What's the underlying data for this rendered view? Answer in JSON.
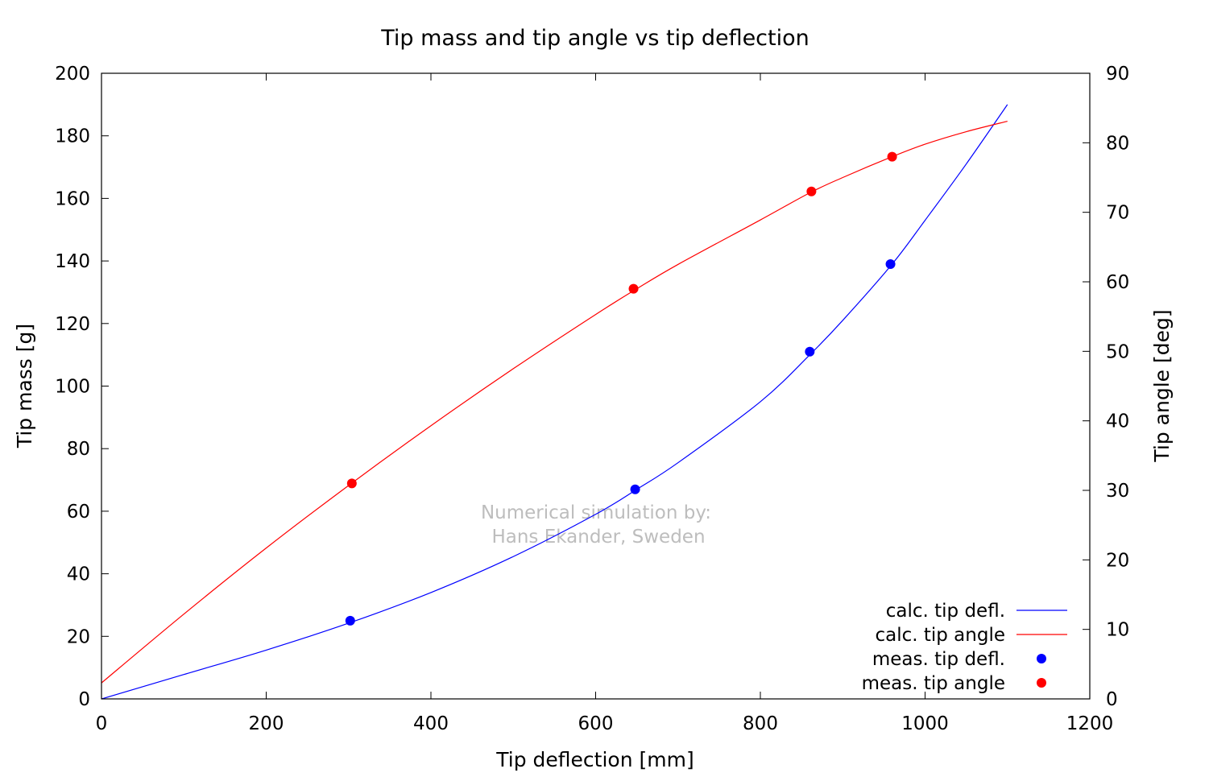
{
  "chart_data": {
    "type": "line",
    "title": "Tip mass and tip angle vs tip deflection",
    "xlabel": "Tip deflection [mm]",
    "ylabel": "Tip mass [g]",
    "y2label": "Tip angle [deg]",
    "xlim": [
      0,
      1200
    ],
    "ylim": [
      0,
      200
    ],
    "y2lim": [
      0,
      90
    ],
    "xticks": [
      0,
      200,
      400,
      600,
      800,
      1000,
      1200
    ],
    "yticks": [
      0,
      20,
      40,
      60,
      80,
      100,
      120,
      140,
      160,
      180,
      200
    ],
    "y2ticks": [
      0,
      10,
      20,
      30,
      40,
      50,
      60,
      70,
      80,
      90
    ],
    "grid": false,
    "legend_position": "bottom-right",
    "annotation": [
      "Numerical simulation by:",
      "Hans Ekander, Sweden"
    ],
    "series": [
      {
        "name": "calc. tip defl.",
        "kind": "line",
        "axis": "left",
        "color": "#0000ff",
        "x": [
          0,
          100,
          200,
          300,
          400,
          500,
          600,
          650,
          700,
          800,
          860,
          900,
          960,
          1000,
          1050,
          1100
        ],
        "y": [
          0,
          7.8,
          15.6,
          24.2,
          34.0,
          45.5,
          59.0,
          67.0,
          75.5,
          95.0,
          110.0,
          121.0,
          139.0,
          153.0,
          171.0,
          190.0
        ]
      },
      {
        "name": "calc. tip angle",
        "kind": "line",
        "axis": "right",
        "color": "#ff0000",
        "x": [
          0,
          100,
          200,
          300,
          400,
          500,
          600,
          650,
          700,
          800,
          860,
          900,
          960,
          1000,
          1050,
          1100
        ],
        "y": [
          2.3,
          12.2,
          21.7,
          30.7,
          39.3,
          47.5,
          55.3,
          59.0,
          62.5,
          68.9,
          72.8,
          75.0,
          78.0,
          79.8,
          81.6,
          83.1
        ]
      },
      {
        "name": "meas. tip defl.",
        "kind": "scatter",
        "axis": "left",
        "color": "#0000ff",
        "x": [
          302,
          648,
          860,
          958
        ],
        "y": [
          25,
          67,
          111,
          139
        ]
      },
      {
        "name": "meas. tip angle",
        "kind": "scatter",
        "axis": "right",
        "color": "#ff0000",
        "x": [
          304,
          646,
          862,
          960
        ],
        "y": [
          31,
          59,
          73,
          78
        ]
      }
    ]
  }
}
